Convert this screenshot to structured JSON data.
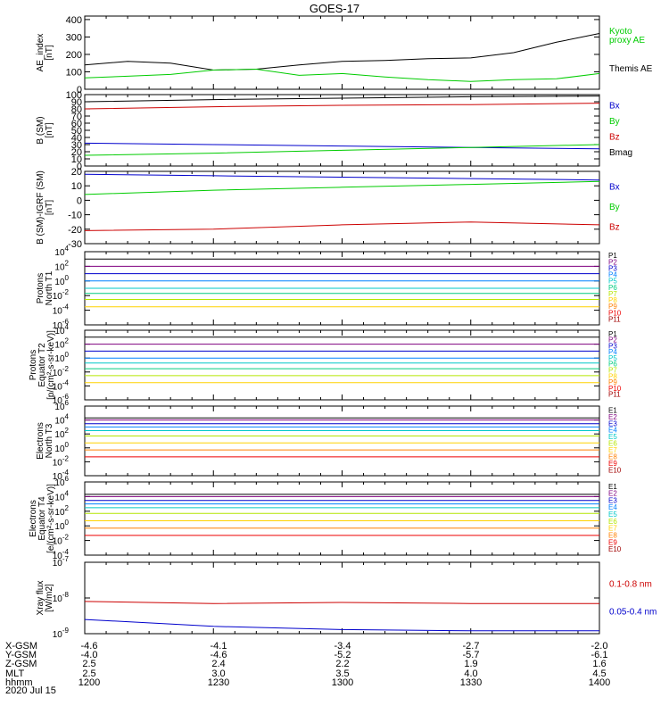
{
  "title": "GOES-17",
  "panels": [
    {
      "ylabel": [
        "AE_index",
        "[nT]"
      ],
      "ylim": [
        0,
        420
      ],
      "yticks": [
        "0",
        "100",
        "200",
        "300",
        "400"
      ],
      "legend": [
        {
          "text": "Kyoto",
          "color": "#00cc00"
        },
        {
          "text": "proxy AE",
          "color": "#00cc00"
        },
        {
          "text": "Themis AE",
          "color": "#000000"
        }
      ]
    },
    {
      "ylabel": [
        "B (SM)",
        "[nT]"
      ],
      "ylim": [
        0,
        100
      ],
      "yticks": [
        "0",
        "10",
        "20",
        "30",
        "40",
        "50",
        "60",
        "70",
        "80",
        "90",
        "100"
      ],
      "legend": [
        {
          "text": "Bx",
          "color": "#0000cc"
        },
        {
          "text": "By",
          "color": "#00cc00"
        },
        {
          "text": "Bz",
          "color": "#cc0000"
        },
        {
          "text": "Bmag",
          "color": "#000000"
        }
      ]
    },
    {
      "ylabel": [
        "B (SM)-IGRF (SM)",
        "[nT]"
      ],
      "ylim": [
        -30,
        20
      ],
      "yticks": [
        "-30",
        "-20",
        "-10",
        "0",
        "10",
        "20"
      ],
      "legend": [
        {
          "text": "Bx",
          "color": "#0000cc"
        },
        {
          "text": "By",
          "color": "#00cc00"
        },
        {
          "text": "Bz",
          "color": "#cc0000"
        }
      ]
    },
    {
      "ylabel": [
        "Protons",
        "North T1"
      ],
      "yticks_log": [
        "-6",
        "-4",
        "-2",
        "0",
        "2",
        "4"
      ],
      "legend": [
        {
          "text": "P1",
          "color": "#000000"
        },
        {
          "text": "P2",
          "color": "#7f007f"
        },
        {
          "text": "P3",
          "color": "#0000cc"
        },
        {
          "text": "P4",
          "color": "#0080ff"
        },
        {
          "text": "P5",
          "color": "#00c8c8"
        },
        {
          "text": "P6",
          "color": "#00cc80"
        },
        {
          "text": "P7",
          "color": "#b4e600"
        },
        {
          "text": "P8",
          "color": "#ffd200"
        },
        {
          "text": "P9",
          "color": "#ff8000"
        },
        {
          "text": "P10",
          "color": "#ee0000"
        },
        {
          "text": "P11",
          "color": "#a00000"
        }
      ]
    },
    {
      "ylabel": [
        "Protons",
        "Equator T2",
        "[p/(cm²-s-sr-keV)]"
      ],
      "yticks_log": [
        "-6",
        "-4",
        "-2",
        "0",
        "2",
        "4"
      ],
      "legend": [
        {
          "text": "P1",
          "color": "#000000"
        },
        {
          "text": "P2",
          "color": "#7f007f"
        },
        {
          "text": "P3",
          "color": "#0000cc"
        },
        {
          "text": "P4",
          "color": "#0080ff"
        },
        {
          "text": "P5",
          "color": "#00c8c8"
        },
        {
          "text": "P6",
          "color": "#00cc80"
        },
        {
          "text": "P7",
          "color": "#b4e600"
        },
        {
          "text": "P8",
          "color": "#ffd200"
        },
        {
          "text": "P9",
          "color": "#ff8000"
        },
        {
          "text": "P10",
          "color": "#ee0000"
        },
        {
          "text": "P11",
          "color": "#a00000"
        }
      ]
    },
    {
      "ylabel": [
        "Electrons",
        "North T3"
      ],
      "yticks_log": [
        "-4",
        "-2",
        "0",
        "2",
        "4",
        "6"
      ],
      "legend": [
        {
          "text": "E1",
          "color": "#000000"
        },
        {
          "text": "E2",
          "color": "#7f007f"
        },
        {
          "text": "E3",
          "color": "#0000cc"
        },
        {
          "text": "E4",
          "color": "#0080ff"
        },
        {
          "text": "E5",
          "color": "#00c8c8"
        },
        {
          "text": "E6",
          "color": "#b4e600"
        },
        {
          "text": "E7",
          "color": "#ffd200"
        },
        {
          "text": "E8",
          "color": "#ff8000"
        },
        {
          "text": "E9",
          "color": "#ee0000"
        },
        {
          "text": "E10",
          "color": "#a00000"
        }
      ]
    },
    {
      "ylabel": [
        "Electrons",
        "Equator T4",
        "[e/(cm²-s-sr-keV)]"
      ],
      "yticks_log": [
        "-4",
        "-2",
        "0",
        "2",
        "4",
        "6"
      ],
      "legend": [
        {
          "text": "E1",
          "color": "#000000"
        },
        {
          "text": "E2",
          "color": "#7f007f"
        },
        {
          "text": "E3",
          "color": "#0000cc"
        },
        {
          "text": "E4",
          "color": "#0080ff"
        },
        {
          "text": "E5",
          "color": "#00c8c8"
        },
        {
          "text": "E6",
          "color": "#b4e600"
        },
        {
          "text": "E7",
          "color": "#ffd200"
        },
        {
          "text": "E8",
          "color": "#ff8000"
        },
        {
          "text": "E9",
          "color": "#ee0000"
        },
        {
          "text": "E10",
          "color": "#a00000"
        }
      ]
    },
    {
      "ylabel": [
        "Xray flux",
        "[W/m2]"
      ],
      "yticks_log": [
        "-9",
        "-8",
        "-7"
      ],
      "legend": [
        {
          "text": "0.1-0.8 nm",
          "color": "#cc0000"
        },
        {
          "text": "0.05-0.4 nm",
          "color": "#0000cc"
        }
      ]
    }
  ],
  "footer": {
    "row_labels": [
      "X-GSM",
      "Y-GSM",
      "Z-GSM",
      "MLT",
      "hhmm",
      "2020 Jul 15"
    ],
    "columns": [
      [
        "-4.6",
        "-4.0",
        "2.5",
        "2.5",
        "1200"
      ],
      [
        "-4.1",
        "-4.6",
        "2.4",
        "3.0",
        "1230"
      ],
      [
        "-3.4",
        "-5.2",
        "2.2",
        "3.5",
        "1300"
      ],
      [
        "-2.7",
        "-5.7",
        "1.9",
        "4.0",
        "1330"
      ],
      [
        "-2.0",
        "-6.1",
        "1.6",
        "4.5",
        "1400"
      ]
    ]
  },
  "chart_data": [
    {
      "type": "line",
      "ylabel": "AE_index [nT]",
      "ylim": [
        0,
        420
      ],
      "x": [
        1200,
        1210,
        1220,
        1230,
        1240,
        1250,
        1300,
        1310,
        1320,
        1330,
        1340,
        1350,
        1400
      ],
      "series": [
        {
          "name": "Themis AE",
          "color": "#000000",
          "values": [
            140,
            160,
            150,
            110,
            115,
            140,
            160,
            165,
            175,
            180,
            210,
            270,
            320
          ]
        },
        {
          "name": "Kyoto proxy AE",
          "color": "#00cc00",
          "values": [
            65,
            75,
            85,
            110,
            115,
            80,
            90,
            70,
            55,
            45,
            55,
            60,
            90
          ]
        }
      ]
    },
    {
      "type": "line",
      "ylabel": "B (SM) [nT]",
      "ylim": [
        0,
        100
      ],
      "x": [
        1200,
        1230,
        1300,
        1330,
        1400
      ],
      "series": [
        {
          "name": "Bmag",
          "color": "#000000",
          "values": [
            90,
            93,
            95,
            97,
            98
          ]
        },
        {
          "name": "Bz",
          "color": "#cc0000",
          "values": [
            80,
            83,
            85,
            86,
            88
          ]
        },
        {
          "name": "Bx",
          "color": "#0000cc",
          "values": [
            32,
            30,
            28,
            26,
            24
          ]
        },
        {
          "name": "By",
          "color": "#00cc00",
          "values": [
            15,
            18,
            22,
            26,
            30
          ]
        }
      ]
    },
    {
      "type": "line",
      "ylabel": "B (SM)-IGRF (SM) [nT]",
      "ylim": [
        -30,
        20
      ],
      "x": [
        1200,
        1230,
        1300,
        1330,
        1400
      ],
      "series": [
        {
          "name": "Bx",
          "color": "#0000cc",
          "values": [
            18,
            17,
            16,
            15,
            14
          ]
        },
        {
          "name": "By",
          "color": "#00cc00",
          "values": [
            4,
            7,
            9,
            11,
            13
          ]
        },
        {
          "name": "Bz",
          "color": "#cc0000",
          "values": [
            -21,
            -20,
            -17,
            -15,
            -17
          ]
        }
      ]
    },
    {
      "type": "line",
      "ylabel": "Protons North T1",
      "scale": "log",
      "ylim": [
        1e-06,
        10000.0
      ],
      "x": [
        1200,
        1400
      ],
      "series": [
        {
          "name": "P1",
          "color": "#000000",
          "values": [
            1000,
            1000
          ]
        },
        {
          "name": "P2",
          "color": "#7f007f",
          "values": [
            100,
            100
          ]
        },
        {
          "name": "P3",
          "color": "#0000cc",
          "values": [
            10,
            10
          ]
        },
        {
          "name": "P4",
          "color": "#0080ff",
          "values": [
            1,
            1
          ]
        },
        {
          "name": "P5",
          "color": "#00c8c8",
          "values": [
            0.1,
            0.1
          ]
        },
        {
          "name": "P6",
          "color": "#00cc80",
          "values": [
            0.02,
            0.02
          ]
        },
        {
          "name": "P7",
          "color": "#b4e600",
          "values": [
            0.003,
            0.003
          ]
        },
        {
          "name": "P8",
          "color": "#ffd200",
          "values": [
            0.0003,
            0.0003
          ]
        }
      ]
    },
    {
      "type": "line",
      "ylabel": "Protons Equator T2",
      "scale": "log",
      "ylim": [
        1e-06,
        10000.0
      ],
      "x": [
        1200,
        1400
      ],
      "series": [
        {
          "name": "P1",
          "color": "#000000",
          "values": [
            1000,
            1000
          ]
        },
        {
          "name": "P2",
          "color": "#7f007f",
          "values": [
            100,
            100
          ]
        },
        {
          "name": "P3",
          "color": "#0000cc",
          "values": [
            10,
            10
          ]
        },
        {
          "name": "P4",
          "color": "#0080ff",
          "values": [
            1,
            1
          ]
        },
        {
          "name": "P5",
          "color": "#00c8c8",
          "values": [
            0.2,
            0.2
          ]
        },
        {
          "name": "P6",
          "color": "#00cc80",
          "values": [
            0.03,
            0.03
          ]
        },
        {
          "name": "P7",
          "color": "#b4e600",
          "values": [
            0.003,
            0.003
          ]
        },
        {
          "name": "P8",
          "color": "#ffd200",
          "values": [
            0.0003,
            0.0003
          ]
        }
      ]
    },
    {
      "type": "line",
      "ylabel": "Electrons North T3",
      "scale": "log",
      "ylim": [
        0.0001,
        1000000.0
      ],
      "x": [
        1200,
        1400
      ],
      "series": [
        {
          "name": "E1",
          "color": "#000000",
          "values": [
            20000,
            20000
          ]
        },
        {
          "name": "E2",
          "color": "#7f007f",
          "values": [
            10000,
            10000
          ]
        },
        {
          "name": "E3",
          "color": "#0000cc",
          "values": [
            3000,
            3000
          ]
        },
        {
          "name": "E4",
          "color": "#0080ff",
          "values": [
            1000,
            1000
          ]
        },
        {
          "name": "E5",
          "color": "#00c8c8",
          "values": [
            300,
            300
          ]
        },
        {
          "name": "E6",
          "color": "#b4e600",
          "values": [
            50,
            50
          ]
        },
        {
          "name": "E7",
          "color": "#ffd200",
          "values": [
            5,
            5
          ]
        },
        {
          "name": "E8",
          "color": "#ff8000",
          "values": [
            0.5,
            0.5
          ]
        },
        {
          "name": "E9",
          "color": "#ee0000",
          "values": [
            0.05,
            0.05
          ]
        }
      ]
    },
    {
      "type": "line",
      "ylabel": "Electrons Equator T4",
      "scale": "log",
      "ylim": [
        0.0001,
        1000000.0
      ],
      "x": [
        1200,
        1400
      ],
      "series": [
        {
          "name": "E1",
          "color": "#000000",
          "values": [
            20000,
            20000
          ]
        },
        {
          "name": "E2",
          "color": "#7f007f",
          "values": [
            10000,
            10000
          ]
        },
        {
          "name": "E3",
          "color": "#0000cc",
          "values": [
            3000,
            3000
          ]
        },
        {
          "name": "E4",
          "color": "#0080ff",
          "values": [
            1000,
            1000
          ]
        },
        {
          "name": "E5",
          "color": "#00c8c8",
          "values": [
            300,
            300
          ]
        },
        {
          "name": "E6",
          "color": "#b4e600",
          "values": [
            50,
            50
          ]
        },
        {
          "name": "E7",
          "color": "#ffd200",
          "values": [
            5,
            5
          ]
        },
        {
          "name": "E8",
          "color": "#ff8000",
          "values": [
            0.5,
            0.5
          ]
        },
        {
          "name": "E9",
          "color": "#ee0000",
          "values": [
            0.05,
            0.05
          ]
        }
      ]
    },
    {
      "type": "line",
      "ylabel": "Xray flux [W/m2]",
      "scale": "log",
      "ylim": [
        1e-09,
        1e-07
      ],
      "x": [
        1200,
        1230,
        1300,
        1330,
        1400
      ],
      "series": [
        {
          "name": "0.1-0.8 nm",
          "color": "#cc0000",
          "values": [
            8e-09,
            7e-09,
            7.5e-09,
            7e-09,
            7e-09
          ]
        },
        {
          "name": "0.05-0.4 nm",
          "color": "#0000cc",
          "values": [
            2.5e-09,
            1.6e-09,
            1.3e-09,
            1.2e-09,
            1.2e-09
          ]
        }
      ]
    }
  ]
}
